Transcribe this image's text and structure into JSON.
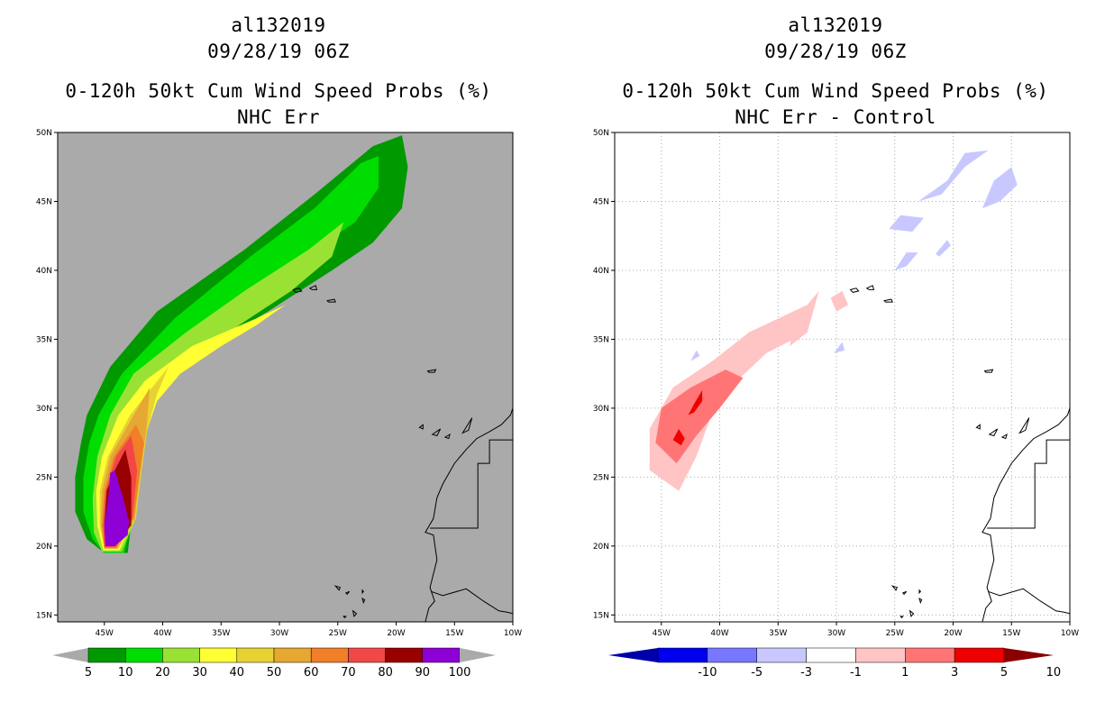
{
  "chart_data": [
    {
      "type": "heatmap",
      "storm_id": "al132019",
      "datetime": "09/28/19 06Z",
      "title": "0-120h 50kt Cum Wind Speed Probs (%)",
      "subtitle": "NHC Err",
      "lon_range": [
        -49,
        -10
      ],
      "lat_range": [
        14.5,
        50
      ],
      "x_tick_labels": [
        "45W",
        "40W",
        "35W",
        "30W",
        "25W",
        "20W",
        "15W",
        "10W"
      ],
      "y_tick_labels": [
        "15N",
        "20N",
        "25N",
        "30N",
        "35N",
        "40N",
        "45N",
        "50N"
      ],
      "grid": false,
      "background": "#aaaaaa",
      "colorbar": {
        "levels": [
          "5",
          "10",
          "20",
          "30",
          "40",
          "50",
          "60",
          "70",
          "80",
          "90",
          "100"
        ],
        "colors": [
          "#009900",
          "#00dd00",
          "#99e233",
          "#ffff33",
          "#e6d333",
          "#e6a733",
          "#f07f27",
          "#f24747",
          "#990000",
          "#8d00d6"
        ],
        "end_color": "#aaaaaa"
      },
      "probability_contours": [
        {
          "level": 5,
          "color": "#009900",
          "lon": [
            -43,
            -45,
            -46.5,
            -47.5,
            -47.5,
            -47,
            -46.5,
            -44.5,
            -40.5,
            -33,
            -27,
            -22,
            -19.5,
            -19,
            -19.5,
            -22,
            -25.5,
            -31,
            -37,
            -41,
            -42.5,
            -42.5,
            -43
          ],
          "lat": [
            19.5,
            19.5,
            20.5,
            22.5,
            25,
            27.5,
            29.5,
            33,
            37,
            41.5,
            45.5,
            49,
            49.8,
            47.5,
            44.5,
            42,
            40,
            37,
            34,
            30.5,
            27,
            23,
            19.5
          ]
        },
        {
          "level": 10,
          "color": "#00dd00",
          "lon": [
            -43.3,
            -45,
            -46,
            -46.8,
            -46.8,
            -46.3,
            -45.5,
            -43.5,
            -39,
            -32.5,
            -27,
            -23,
            -21.5,
            -21.5,
            -23.5,
            -27,
            -31.5,
            -37,
            -40.5,
            -41.8,
            -42.2,
            -42.5,
            -43.3
          ],
          "lat": [
            19.5,
            19.5,
            20.5,
            22.5,
            25,
            27.5,
            29.5,
            32.5,
            36.5,
            41,
            44.5,
            47.8,
            48.3,
            46,
            43.5,
            41.5,
            39,
            36,
            32.5,
            29.5,
            26,
            22.5,
            19.5
          ]
        },
        {
          "level": 20,
          "color": "#99e233",
          "lon": [
            -43.5,
            -45.2,
            -45.9,
            -46,
            -45.6,
            -44.5,
            -42.5,
            -38,
            -33,
            -27.5,
            -24.5,
            -25.5,
            -29,
            -33.5,
            -38,
            -40.5,
            -41.5,
            -42,
            -42.3,
            -43.5
          ],
          "lat": [
            19.6,
            19.6,
            21,
            23.5,
            26.5,
            29.5,
            32.5,
            35.5,
            38.5,
            41.5,
            43.5,
            41,
            38.5,
            36,
            33.5,
            30.5,
            28,
            25,
            22,
            19.6
          ]
        },
        {
          "level": 30,
          "color": "#ffff33",
          "lon": [
            -43.7,
            -45.1,
            -45.6,
            -45.7,
            -45.2,
            -43.8,
            -41.5,
            -37.5,
            -32,
            -29.5,
            -32,
            -35,
            -38.5,
            -40.5,
            -41.5,
            -42,
            -42.4,
            -43.7
          ],
          "lat": [
            19.7,
            19.7,
            21.5,
            24,
            26.5,
            29.5,
            32,
            34.5,
            36.5,
            37.5,
            36,
            34.5,
            32.5,
            30.5,
            28,
            25,
            22,
            19.7
          ]
        },
        {
          "level": 40,
          "color": "#e6d333",
          "lon": [
            -43.8,
            -45,
            -45.4,
            -45.4,
            -44.7,
            -42.8,
            -39.5,
            -40.5,
            -41.3,
            -41.8,
            -42.3,
            -43.8
          ],
          "lat": [
            19.8,
            19.8,
            21.5,
            24,
            26.5,
            29.5,
            33,
            31,
            28.5,
            25.5,
            22,
            19.8
          ]
        },
        {
          "level": 50,
          "color": "#e6a733",
          "lon": [
            -43.9,
            -45,
            -45.3,
            -45.2,
            -44.5,
            -42.5,
            -41.1,
            -41.4,
            -41.9,
            -42.4,
            -43.9
          ],
          "lat": [
            19.8,
            19.8,
            21.5,
            24,
            26.5,
            29.5,
            31.5,
            28.5,
            25.5,
            22,
            19.8
          ]
        },
        {
          "level": 60,
          "color": "#f07f27",
          "lon": [
            -44,
            -45,
            -45.2,
            -45,
            -44.2,
            -42.3,
            -41.6,
            -42,
            -42.5,
            -44
          ],
          "lat": [
            19.9,
            19.9,
            21.5,
            24,
            26.5,
            28.8,
            27.5,
            25,
            22,
            19.9
          ]
        },
        {
          "level": 70,
          "color": "#f24747",
          "lon": [
            -44,
            -45,
            -45.1,
            -44.9,
            -44,
            -42.7,
            -42.2,
            -42.6,
            -44
          ],
          "lat": [
            19.9,
            19.9,
            21.5,
            24,
            26.5,
            28,
            25.5,
            22,
            19.9
          ]
        },
        {
          "level": 80,
          "color": "#990000",
          "lon": [
            -44.1,
            -44.9,
            -45,
            -44.8,
            -44.1,
            -43.2,
            -42.7,
            -42.7,
            -44.1
          ],
          "lat": [
            20,
            20,
            21.5,
            24,
            25.5,
            27,
            25,
            21.5,
            20
          ]
        },
        {
          "level": 90,
          "color": "#8d00d6",
          "lon": [
            -44.1,
            -44.9,
            -45,
            -44.6,
            -44.5,
            -44.1,
            -43.4,
            -42.9,
            -43,
            -44.1
          ],
          "lat": [
            20,
            20,
            21.5,
            24,
            25.3,
            25.5,
            23.5,
            21.8,
            20.8,
            20
          ]
        }
      ]
    },
    {
      "type": "heatmap",
      "storm_id": "al132019",
      "datetime": "09/28/19 06Z",
      "title": "0-120h 50kt Cum Wind Speed Probs (%)",
      "subtitle": "NHC Err - Control",
      "lon_range": [
        -49,
        -10
      ],
      "lat_range": [
        14.5,
        50
      ],
      "x_tick_labels": [
        "45W",
        "40W",
        "35W",
        "30W",
        "25W",
        "20W",
        "15W",
        "10W"
      ],
      "y_tick_labels": [
        "15N",
        "20N",
        "25N",
        "30N",
        "35N",
        "40N",
        "45N",
        "50N"
      ],
      "grid": true,
      "background": "#ffffff",
      "colorbar": {
        "levels": [
          "-10",
          "-5",
          "-3",
          "-1",
          "1",
          "3",
          "5",
          "10"
        ],
        "colors": [
          "#0000aa",
          "#0000ee",
          "#7777ff",
          "#c8c8ff",
          "#ffffff",
          "#ffc4c4",
          "#ff7575",
          "#ee0000",
          "#880000"
        ],
        "end_colors": [
          "#000088",
          "#770000"
        ]
      },
      "difference_contours": [
        {
          "level": "1 to 3",
          "color": "#ffc4c4",
          "lon": [
            -43.5,
            -46,
            -46,
            -44,
            -40.5,
            -37.5,
            -35,
            -32.5,
            -31.5,
            -32.5,
            -36,
            -38.5,
            -40.5,
            -42,
            -43.5
          ],
          "lat": [
            24,
            25.5,
            28.5,
            31.5,
            33.5,
            35.5,
            36.5,
            37.5,
            38.5,
            35.5,
            34,
            32,
            30,
            26.5,
            24
          ]
        },
        {
          "level": "1 to 3",
          "color": "#ffc4c4",
          "lon": [
            -34,
            -32.5,
            -32.5,
            -33.5,
            -34
          ],
          "lat": [
            34.5,
            35.5,
            36.5,
            36.5,
            34.5
          ]
        },
        {
          "level": "1 to 3",
          "color": "#ffc4c4",
          "lon": [
            -30,
            -29,
            -29.5,
            -30.5,
            -30
          ],
          "lat": [
            37,
            37.5,
            38.5,
            38,
            37
          ]
        },
        {
          "level": "3 to 5",
          "color": "#ff7575",
          "lon": [
            -43.7,
            -45.5,
            -45,
            -42.5,
            -39.5,
            -38,
            -40,
            -42,
            -43.7
          ],
          "lat": [
            26,
            27.5,
            30,
            31.5,
            32.8,
            32.2,
            30,
            28,
            26
          ]
        },
        {
          "level": "5 to 10",
          "color": "#ee0000",
          "lon": [
            -43.3,
            -44,
            -43.5,
            -43,
            -43.3
          ],
          "lat": [
            27.3,
            27.7,
            28.5,
            27.8,
            27.3
          ]
        },
        {
          "level": "5 to 10",
          "color": "#ee0000",
          "lon": [
            -42.7,
            -42.2,
            -41.5,
            -41.5,
            -42.2,
            -42.7
          ],
          "lat": [
            29.5,
            30.3,
            31.3,
            30.5,
            29.7,
            29.5
          ]
        },
        {
          "level": "-1 to -3",
          "color": "#c8c8ff",
          "lon": [
            -23,
            -20.5,
            -19,
            -17,
            -19,
            -21,
            -23
          ],
          "lat": [
            45,
            46.5,
            48.5,
            48.7,
            47.5,
            45.5,
            45
          ]
        },
        {
          "level": "-1 to -3",
          "color": "#c8c8ff",
          "lon": [
            -17.5,
            -16.5,
            -15,
            -14.5,
            -16,
            -17.5
          ],
          "lat": [
            44.5,
            46.5,
            47.5,
            46.2,
            45,
            44.5
          ]
        },
        {
          "level": "-1 to -3",
          "color": "#c8c8ff",
          "lon": [
            -25.5,
            -24.5,
            -22.5,
            -23.5,
            -25.5
          ],
          "lat": [
            43,
            44,
            43.8,
            42.8,
            43
          ]
        },
        {
          "level": "-1 to -3",
          "color": "#c8c8ff",
          "lon": [
            -25,
            -24,
            -23,
            -24,
            -25
          ],
          "lat": [
            40,
            41.3,
            41.3,
            40.3,
            40
          ]
        },
        {
          "level": "-1 to -3",
          "color": "#c8c8ff",
          "lon": [
            -21.5,
            -20.5,
            -20.2,
            -21.2,
            -21.5
          ],
          "lat": [
            41.2,
            42.2,
            41.8,
            41,
            41.2
          ]
        },
        {
          "level": "-1 to -3",
          "color": "#c8c8ff",
          "lon": [
            -30.2,
            -29.5,
            -29.3,
            -30.2
          ],
          "lat": [
            34,
            34.8,
            34.2,
            34
          ]
        },
        {
          "level": "-1 to -3",
          "color": "#c8c8ff",
          "lon": [
            -42.5,
            -41.7,
            -42,
            -42.5
          ],
          "lat": [
            33.4,
            33.8,
            34.2,
            33.4
          ]
        }
      ]
    }
  ],
  "land_outlines": {
    "africa_coast": {
      "lon": [
        -17.5,
        -17.2,
        -16.7,
        -17.1,
        -16.5,
        -16.8,
        -17.5,
        -16.8,
        -16.5,
        -16,
        -15,
        -14,
        -13.1,
        -12,
        -11,
        -10.2,
        -10
      ],
      "lat": [
        14.5,
        15.5,
        16,
        17,
        19,
        20.8,
        21,
        22,
        23.5,
        24.5,
        26,
        27,
        27.8,
        28.3,
        28.8,
        29.5,
        30
      ]
    },
    "western_sahara_border": {
      "lon": [
        -17.1,
        -13,
        -13,
        -12,
        -12,
        -8.7
      ],
      "lat": [
        21.3,
        21.3,
        26,
        26,
        27.7,
        27.7
      ]
    },
    "mauritania_mali_border": {
      "lon": [
        -17,
        -16,
        -14,
        -12.5,
        -11.2,
        -10.5,
        -10
      ],
      "lat": [
        16.7,
        16.4,
        16.9,
        16,
        15.3,
        15.2,
        15.1
      ]
    },
    "islands": [
      {
        "name": "azores-1",
        "lon": [
          -28.8,
          -28.3,
          -28.1,
          -28.6,
          -28.8
        ],
        "lat": [
          38.6,
          38.7,
          38.5,
          38.4,
          38.6
        ]
      },
      {
        "name": "azores-2",
        "lon": [
          -27.4,
          -26.9,
          -26.8,
          -27.2,
          -27.4
        ],
        "lat": [
          38.7,
          38.9,
          38.6,
          38.6,
          38.7
        ]
      },
      {
        "name": "azores-3",
        "lon": [
          -25.9,
          -25.3,
          -25.2,
          -25.8,
          -25.9
        ],
        "lat": [
          37.8,
          37.9,
          37.7,
          37.7,
          37.8
        ]
      },
      {
        "name": "madeira",
        "lon": [
          -17.3,
          -16.6,
          -16.7,
          -17.2,
          -17.3
        ],
        "lat": [
          32.7,
          32.8,
          32.6,
          32.6,
          32.7
        ]
      },
      {
        "name": "canary-1",
        "lon": [
          -18.0,
          -17.7,
          -17.7,
          -18.0
        ],
        "lat": [
          28.6,
          28.8,
          28.5,
          28.6
        ]
      },
      {
        "name": "canary-2",
        "lon": [
          -16.9,
          -16.2,
          -16.5,
          -16.9
        ],
        "lat": [
          28.1,
          28.5,
          28.0,
          28.1
        ]
      },
      {
        "name": "canary-3",
        "lon": [
          -15.8,
          -15.4,
          -15.5,
          -15.8
        ],
        "lat": [
          27.9,
          28.1,
          27.8,
          27.9
        ]
      },
      {
        "name": "canary-4",
        "lon": [
          -14.3,
          -13.5,
          -13.8,
          -14.3
        ],
        "lat": [
          28.2,
          29.3,
          28.4,
          28.2
        ]
      },
      {
        "name": "cape-verde-1",
        "lon": [
          -25.2,
          -24.8,
          -24.9,
          -25.2
        ],
        "lat": [
          17.1,
          17.0,
          16.8,
          17.1
        ]
      },
      {
        "name": "cape-verde-2",
        "lon": [
          -24.3,
          -24.0,
          -24.2
        ],
        "lat": [
          16.6,
          16.7,
          16.5
        ]
      },
      {
        "name": "cape-verde-3",
        "lon": [
          -23.7,
          -23.4,
          -23.6,
          -23.7
        ],
        "lat": [
          15.3,
          15.1,
          14.9,
          15.3
        ]
      },
      {
        "name": "cape-verde-4",
        "lon": [
          -24.5,
          -24.3,
          -24.4,
          -24.5
        ],
        "lat": [
          14.9,
          14.9,
          14.8,
          14.9
        ]
      },
      {
        "name": "cape-verde-5",
        "lon": [
          -22.9,
          -22.7,
          -22.8,
          -22.9
        ],
        "lat": [
          16.2,
          16.1,
          15.9,
          16.2
        ]
      },
      {
        "name": "cape-verde-6",
        "lon": [
          -22.9,
          -22.8,
          -22.9
        ],
        "lat": [
          16.8,
          16.7,
          16.6
        ]
      }
    ]
  }
}
